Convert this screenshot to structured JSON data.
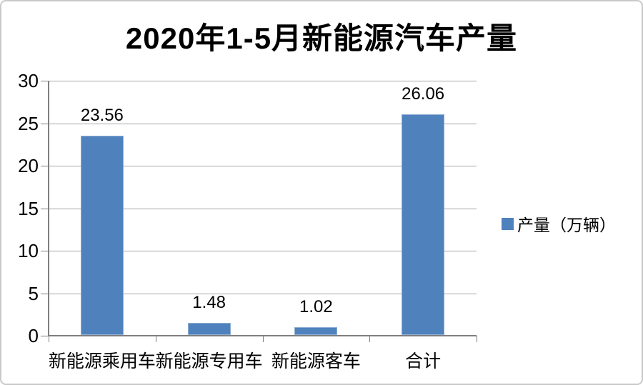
{
  "chart_data": {
    "type": "bar",
    "title": "2020年1-5月新能源汽车产量",
    "categories": [
      "新能源乘用车",
      "新能源专用车",
      "新能源客车",
      "合计"
    ],
    "series": [
      {
        "name": "产量（万辆）",
        "values": [
          23.56,
          1.48,
          1.02,
          26.06
        ]
      }
    ],
    "value_labels": [
      "23.56",
      "1.48",
      "1.02",
      "26.06"
    ],
    "ylim": [
      0,
      30
    ],
    "yticks": [
      0,
      5,
      10,
      15,
      20,
      25,
      30
    ],
    "grid": true,
    "legend_position": "right",
    "colors": {
      "bar_fill": "#4F81BD",
      "bar_edge": "#8FAFD4",
      "gridline": "#A6A6A6",
      "axis": "#7F7F7F",
      "text": "#000000",
      "frame_border": "#C9C9C9",
      "background": "#FFFFFF"
    }
  }
}
